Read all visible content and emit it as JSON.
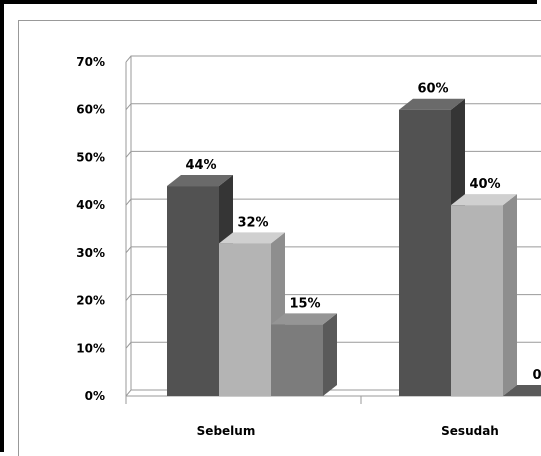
{
  "chart_data": {
    "type": "bar",
    "categories": [
      "Sebelum",
      "Sesudah"
    ],
    "series": [
      {
        "values": [
          44,
          60
        ],
        "labels": [
          "44%",
          "60%"
        ]
      },
      {
        "values": [
          32,
          40
        ],
        "labels": [
          "32%",
          "40%"
        ]
      },
      {
        "values": [
          15,
          0
        ],
        "labels": [
          "15%",
          "0"
        ]
      }
    ],
    "ylim": [
      0,
      70
    ],
    "yticks": [
      "0%",
      "10%",
      "20%",
      "30%",
      "40%",
      "50%",
      "60%",
      "70%"
    ],
    "grid": true,
    "legend": "none",
    "colors": {
      "series_front": [
        "#525252",
        "#b4b4b4",
        "#7c7c7c"
      ],
      "series_side": [
        "#353535",
        "#8e8e8e",
        "#5a5a5a"
      ],
      "series_top": [
        "#6a6a6a",
        "#d0d0d0",
        "#959595"
      ],
      "grid": "#9a9a9a"
    }
  }
}
